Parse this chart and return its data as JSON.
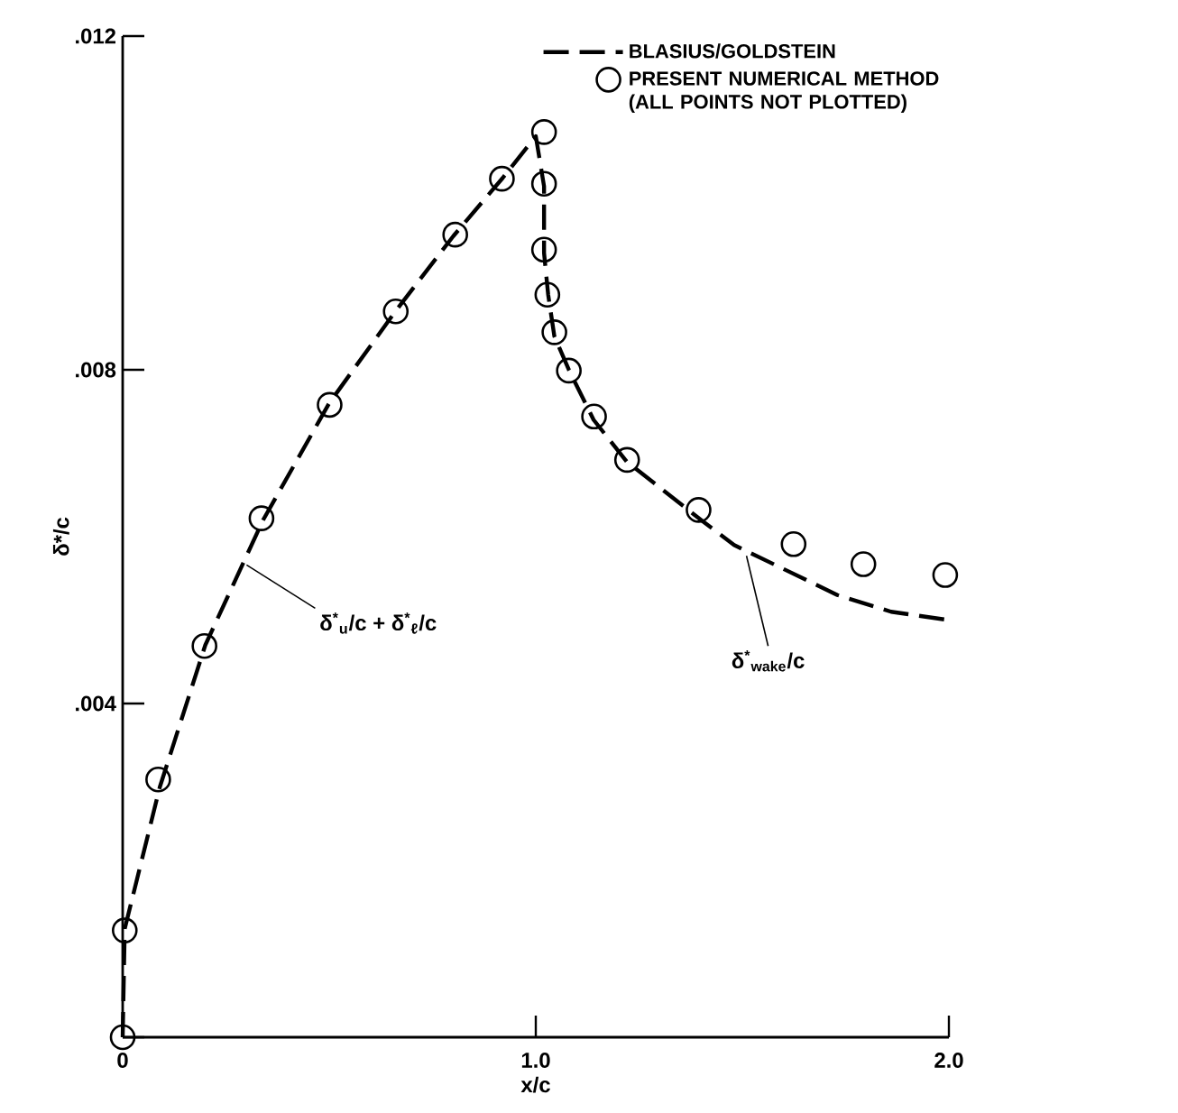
{
  "chart_data": {
    "type": "line",
    "xlabel": "x/c",
    "ylabel": "δ*/c",
    "xlim": [
      0,
      2.0
    ],
    "ylim": [
      0,
      0.012
    ],
    "xticks": [
      0,
      {
        "value": 1.0,
        "label": "1.0"
      },
      {
        "value": 2.0,
        "label": "2.0"
      }
    ],
    "yticks": [
      {
        "value": 0,
        "label": null
      },
      {
        "value": 0.004,
        "label": ".004"
      },
      {
        "value": 0.008,
        "label": ".008"
      },
      {
        "value": 0.012,
        "label": ".012"
      }
    ],
    "legend": "top right",
    "series": [
      {
        "name": "BLASIUS/GOLDSTEIN",
        "line_style": "dashed",
        "color": "#000000",
        "x": [
          0,
          0.005,
          0.09,
          0.2,
          0.34,
          0.5,
          0.66,
          0.8,
          0.92,
          1.0,
          1.02,
          1.02,
          1.03,
          1.045,
          1.08,
          1.14,
          1.22,
          1.4,
          1.48,
          1.73,
          1.86,
          2.0
        ],
        "values": [
          0,
          0.0013,
          0.003,
          0.0047,
          0.0062,
          0.0076,
          0.0087,
          0.0096,
          0.0103,
          0.0108,
          0.0102,
          0.0094,
          0.0089,
          0.0084,
          0.008,
          0.0074,
          0.0069,
          0.0062,
          0.0059,
          0.0053,
          0.0051,
          0.005
        ]
      },
      {
        "name": "PRESENT NUMERICAL METHOD (ALL POINTS NOT PLOTTED)",
        "type": "scatter",
        "marker": "circle",
        "color": "#000000",
        "x": [
          0,
          0.005,
          0.086,
          0.198,
          0.336,
          0.501,
          0.661,
          0.805,
          0.918,
          1.02,
          1.02,
          1.02,
          1.028,
          1.045,
          1.08,
          1.141,
          1.221,
          1.394,
          1.624,
          1.793,
          1.991
        ],
        "values": [
          0,
          0.00128,
          0.00309,
          0.00469,
          0.00622,
          0.00758,
          0.0087,
          0.00962,
          0.01029,
          0.01085,
          0.01023,
          0.00944,
          0.0089,
          0.00845,
          0.00799,
          0.00744,
          0.00692,
          0.00632,
          0.00591,
          0.00567,
          0.00554
        ]
      }
    ],
    "annotations": [
      {
        "text": "δ$^{*}$$_{u}$/c + δ$^{*}$$_{ℓ}$/c",
        "x": 0.3,
        "y": 0.00566
      },
      {
        "text": "δ$^{*}$$_{wake}$/c",
        "x": 1.51,
        "y": 0.00577
      }
    ]
  }
}
